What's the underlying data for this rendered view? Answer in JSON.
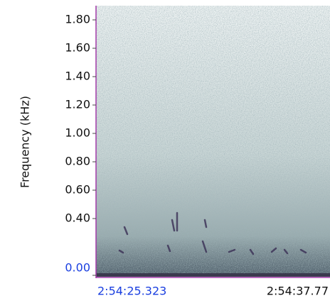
{
  "chart_data": {
    "type": "spectrogram",
    "y_label": "Frequency (kHz)",
    "ylim": [
      0,
      1.89
    ],
    "yticks": [
      {
        "value": 0,
        "label": "0.00"
      },
      {
        "value": 0.4,
        "label": "0.40"
      },
      {
        "value": 0.6,
        "label": "0.60"
      },
      {
        "value": 0.8,
        "label": "0.80"
      },
      {
        "value": 1,
        "label": "1.00"
      },
      {
        "value": 1.2,
        "label": "1.20"
      },
      {
        "value": 1.4,
        "label": "1.40"
      },
      {
        "value": 1.6,
        "label": "1.60"
      },
      {
        "value": 1.8,
        "label": "1.80"
      }
    ],
    "x_labels": [
      "2:54:25.323",
      "2:54:37.77"
    ]
  }
}
